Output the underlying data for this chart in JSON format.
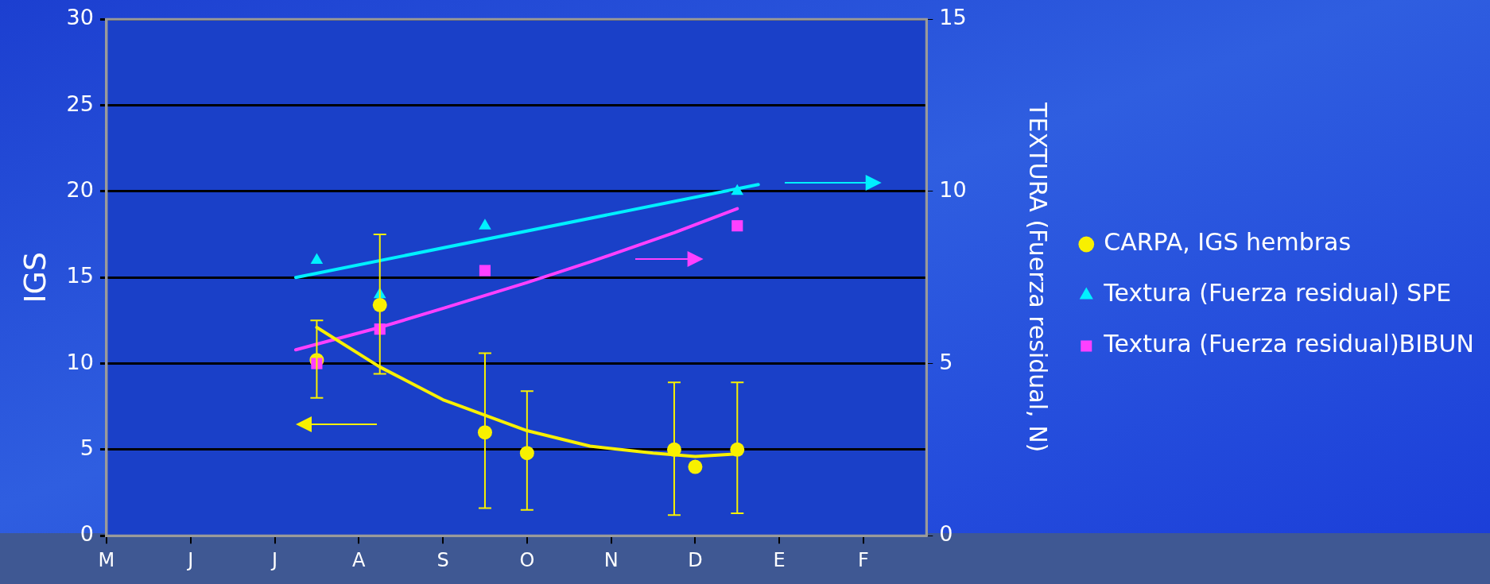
{
  "chart_data": {
    "type": "scatter",
    "ylabel": "IGS",
    "y2label": "TEXTURA (Fuerza residual, N)",
    "categories": [
      "M",
      null,
      null,
      null,
      "J",
      null,
      null,
      null,
      "J",
      null,
      null,
      null,
      "A",
      null,
      null,
      null,
      "S",
      null,
      null,
      null,
      "O",
      null,
      null,
      null,
      "N",
      null,
      null,
      null,
      "D",
      null,
      null,
      null,
      "E",
      null,
      null,
      null,
      "F",
      null,
      null,
      null
    ],
    "ylim": [
      0,
      30
    ],
    "yticks": [
      0,
      5,
      10,
      15,
      20,
      25,
      30
    ],
    "y2lim": [
      0,
      15
    ],
    "y2ticks": [
      0,
      5,
      10,
      15
    ],
    "grid": "y",
    "legend": "right",
    "series": [
      {
        "name": "CARPA, IGS hembras",
        "marker": "circle",
        "color": "#f8f000",
        "axis": "y",
        "values": [
          null,
          null,
          null,
          null,
          null,
          null,
          null,
          null,
          null,
          null,
          10.2,
          null,
          null,
          13.4,
          null,
          null,
          null,
          null,
          6.0,
          null,
          4.8,
          null,
          null,
          null,
          null,
          null,
          null,
          5.0,
          4.0,
          null,
          5.0,
          null,
          null,
          null,
          null,
          null,
          null,
          null,
          null,
          null
        ],
        "errors": [
          null,
          null,
          null,
          null,
          null,
          null,
          null,
          null,
          null,
          null,
          [
            8.0,
            12.5
          ],
          null,
          null,
          [
            9.4,
            17.5
          ],
          null,
          null,
          null,
          null,
          [
            1.6,
            10.6
          ],
          null,
          [
            1.5,
            8.4
          ],
          null,
          null,
          null,
          null,
          null,
          null,
          [
            1.2,
            8.9
          ],
          null,
          null,
          [
            1.3,
            8.9
          ],
          null,
          null,
          null,
          null,
          null,
          null,
          null,
          null,
          null
        ]
      },
      {
        "name": "Textura (Fuerza residual) SPE",
        "marker": "triangle",
        "color": "#00f0ff",
        "axis": "y2",
        "values": [
          null,
          null,
          null,
          null,
          null,
          null,
          null,
          null,
          null,
          null,
          8.0,
          null,
          null,
          7.0,
          null,
          null,
          null,
          null,
          9.0,
          null,
          null,
          null,
          null,
          null,
          null,
          null,
          null,
          null,
          null,
          null,
          10.0,
          null,
          null,
          null,
          null,
          null,
          null,
          null,
          null,
          null
        ]
      },
      {
        "name": "Textura (Fuerza residual)BIBUN",
        "marker": "square",
        "color": "#ff40ff",
        "axis": "y2",
        "values": [
          null,
          null,
          null,
          null,
          null,
          null,
          null,
          null,
          null,
          null,
          5.0,
          null,
          null,
          6.0,
          null,
          null,
          null,
          null,
          7.7,
          null,
          null,
          null,
          null,
          null,
          null,
          null,
          null,
          null,
          null,
          null,
          9.0,
          null,
          null,
          null,
          null,
          null,
          null,
          null,
          null,
          null
        ]
      },
      {
        "type": "line",
        "marker": "none",
        "color": "#f8f000",
        "axis": "y",
        "values": [
          null,
          null,
          null,
          null,
          null,
          null,
          null,
          null,
          null,
          null,
          12.1,
          null,
          null,
          9.8,
          null,
          null,
          7.9,
          null,
          null,
          null,
          6.1,
          null,
          null,
          5.2,
          null,
          null,
          4.8,
          null,
          4.6,
          null,
          4.75,
          null,
          null,
          null,
          null,
          null,
          null,
          null,
          null,
          null
        ]
      },
      {
        "type": "line",
        "marker": "none",
        "color": "#00f0ff",
        "axis": "y2",
        "values": [
          null,
          null,
          null,
          null,
          null,
          null,
          null,
          null,
          null,
          7.5,
          null,
          null,
          null,
          null,
          null,
          null,
          null,
          null,
          null,
          null,
          null,
          null,
          null,
          null,
          null,
          null,
          null,
          null,
          null,
          null,
          null,
          10.2,
          null,
          null,
          null,
          null,
          null,
          null,
          null,
          null
        ]
      },
      {
        "type": "line",
        "marker": "none",
        "color": "#ff40ff",
        "axis": "y2",
        "values": [
          null,
          null,
          null,
          null,
          null,
          null,
          null,
          null,
          null,
          5.4,
          null,
          null,
          null,
          6.05,
          null,
          null,
          6.6,
          null,
          null,
          null,
          7.35,
          null,
          null,
          7.95,
          null,
          null,
          null,
          8.8,
          null,
          null,
          9.5,
          null,
          null,
          null,
          null,
          null,
          null,
          null,
          null,
          null
        ]
      }
    ]
  }
}
